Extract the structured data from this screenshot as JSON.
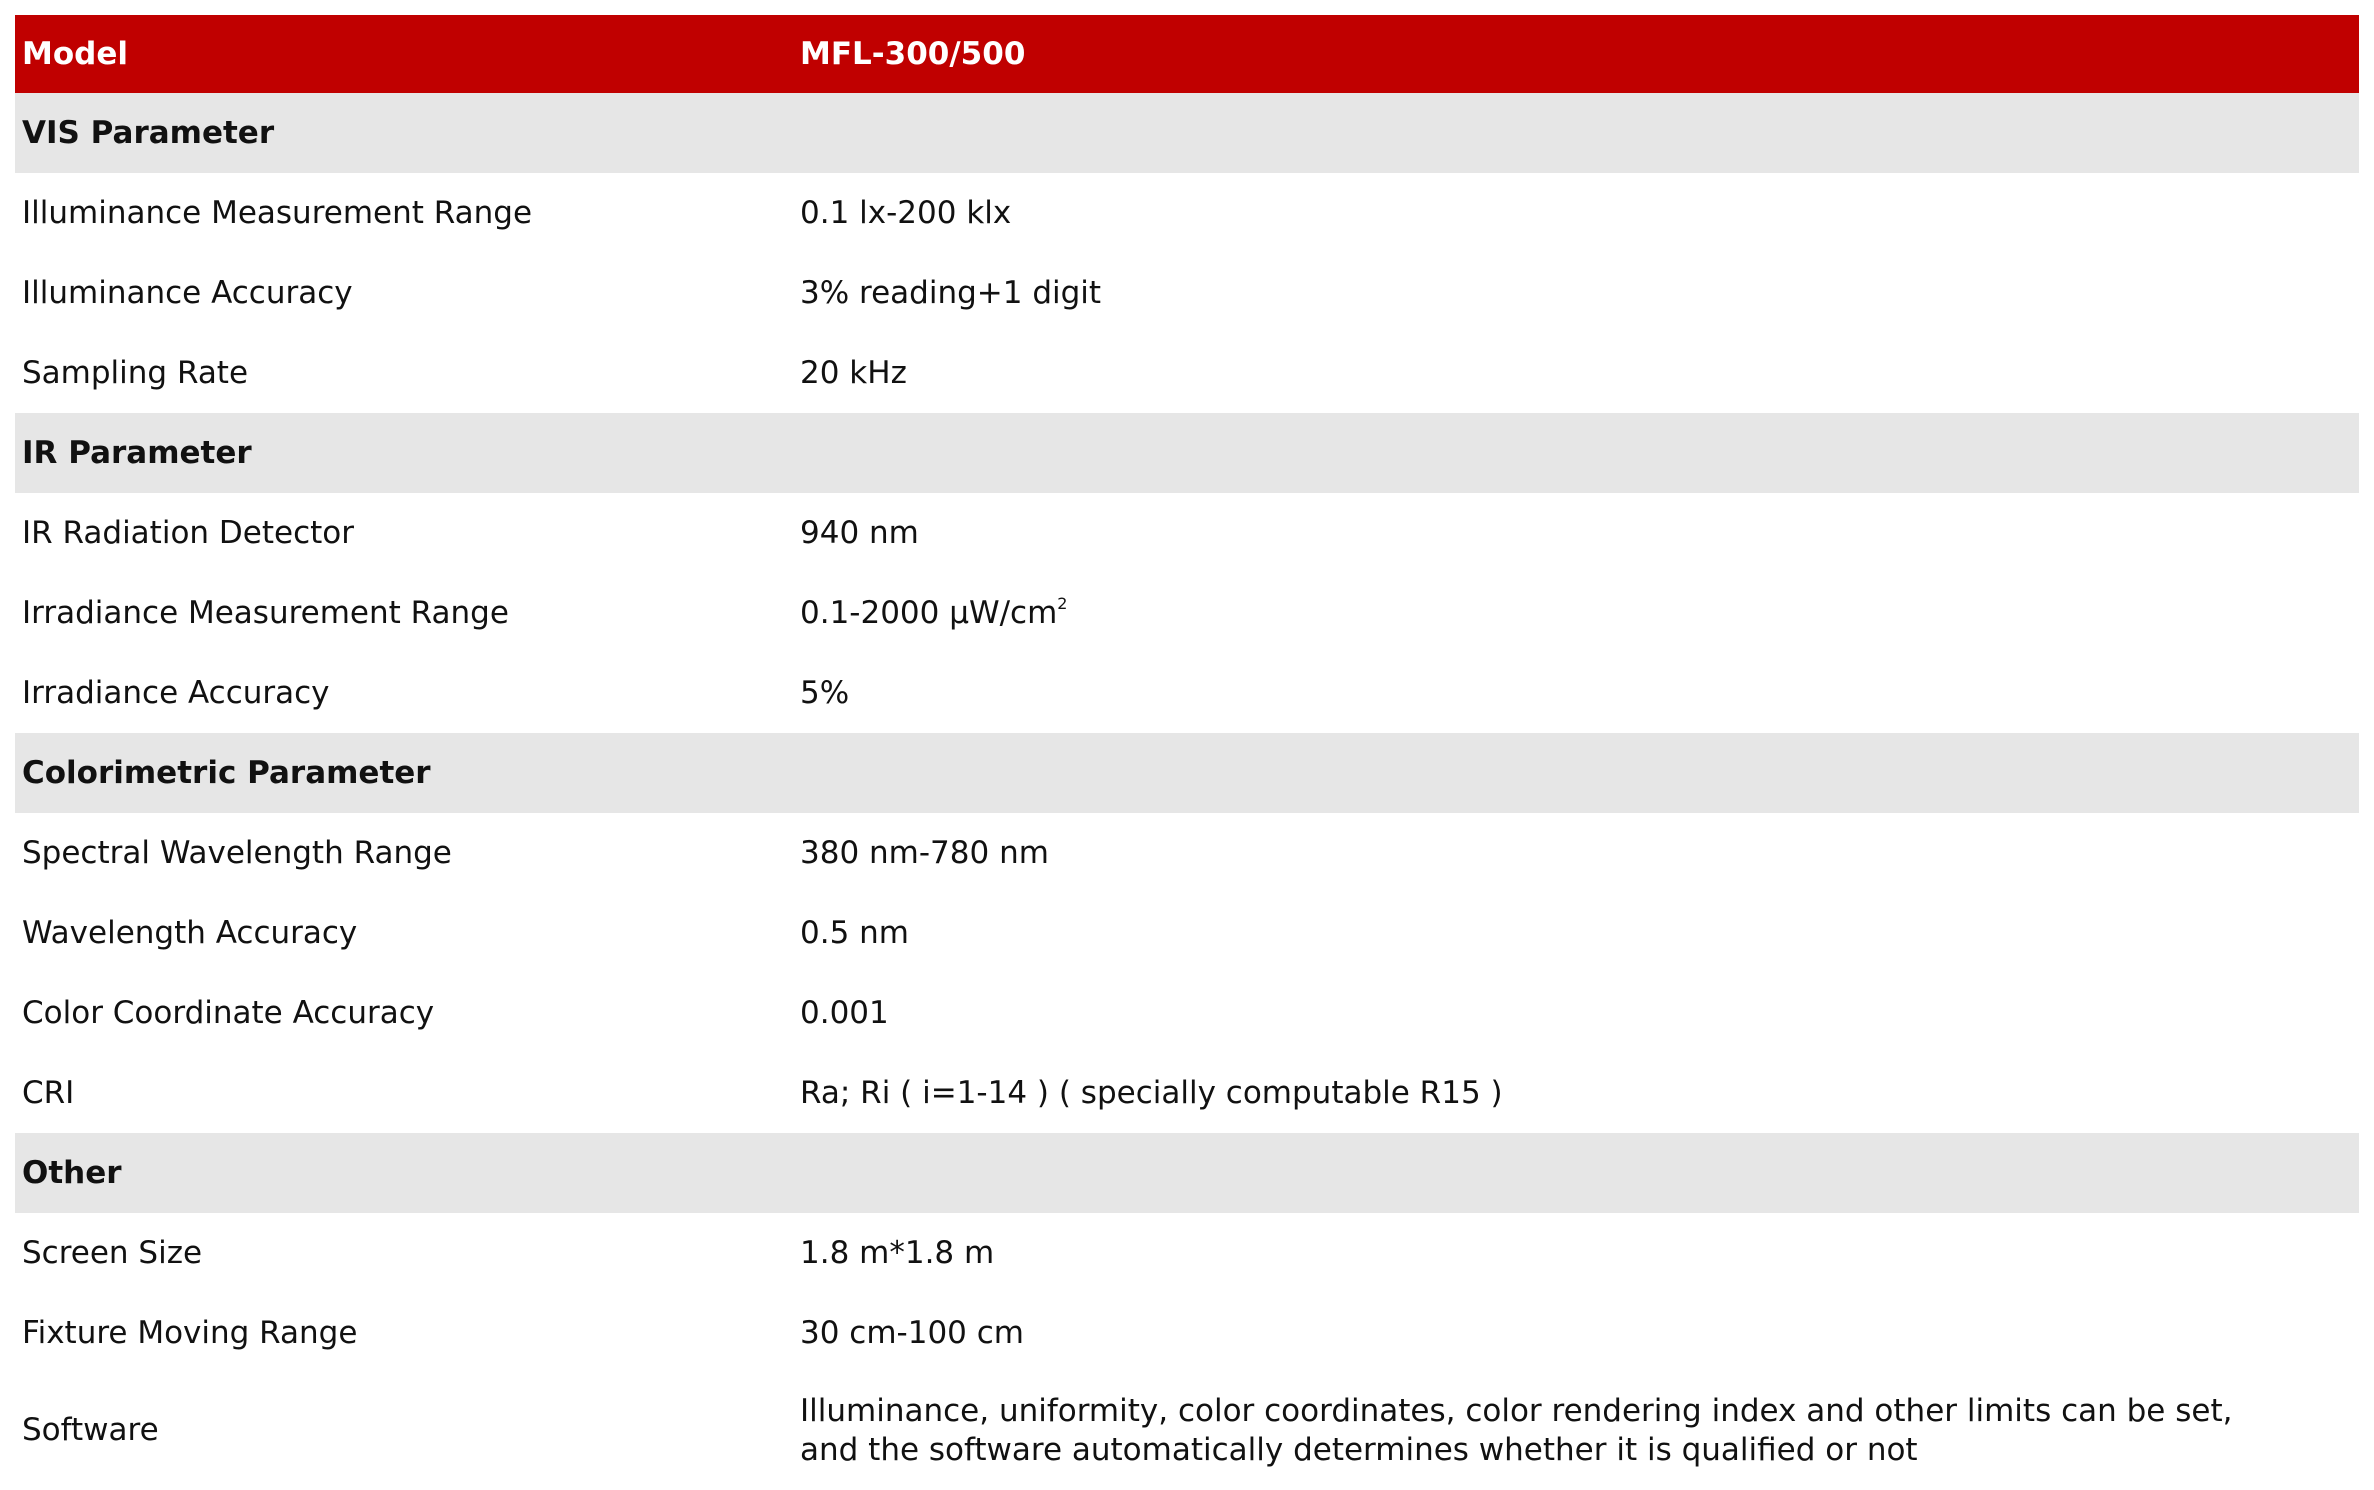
{
  "header": {
    "label": "Model",
    "value": "MFL-300/500"
  },
  "colors": {
    "header_bg": "#c00000",
    "section_bg": "#e6e6e6"
  },
  "sections": [
    {
      "title": "VIS Parameter",
      "rows": [
        {
          "label": "Illuminance Measurement Range",
          "value": "0.1 lx-200 klx"
        },
        {
          "label": "Illuminance Accuracy",
          "value": "3% reading+1 digit"
        },
        {
          "label": "Sampling Rate",
          "value": "20 kHz"
        }
      ]
    },
    {
      "title": "IR Parameter",
      "rows": [
        {
          "label": "IR Radiation Detector",
          "value": "940 nm"
        },
        {
          "label": "Irradiance Measurement Range",
          "value": "0.1-2000 μW/cm",
          "sup": "2"
        },
        {
          "label": "Irradiance Accuracy",
          "value": "5%"
        }
      ]
    },
    {
      "title": "Colorimetric Parameter",
      "rows": [
        {
          "label": "Spectral Wavelength Range",
          "value": "380 nm-780 nm"
        },
        {
          "label": "Wavelength Accuracy",
          "value": "0.5 nm"
        },
        {
          "label": "Color Coordinate Accuracy",
          "value": "0.001"
        },
        {
          "label": "CRI",
          "value": "Ra; Ri ( i=1-14 ) ( specially computable R15 )"
        }
      ]
    },
    {
      "title": "Other",
      "rows": [
        {
          "label": "Screen Size",
          "value": "1.8 m*1.8 m"
        },
        {
          "label": "Fixture Moving Range",
          "value": "30 cm-100 cm"
        },
        {
          "label": "Software",
          "value": "Illuminance, uniformity, color coordinates, color rendering index and other limits can be set,",
          "value2": "and the software automatically determines whether it is qualified or not"
        }
      ]
    }
  ]
}
